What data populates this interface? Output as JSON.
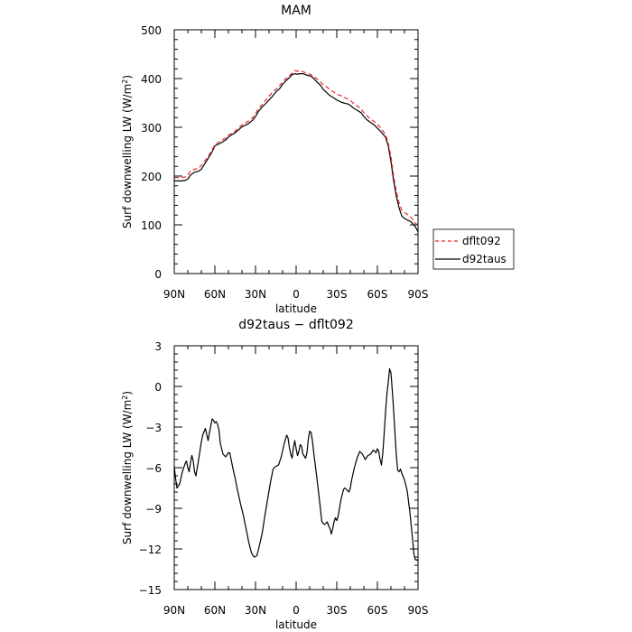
{
  "chart_data": [
    {
      "type": "line",
      "title": "MAM",
      "xlabel": "latitude",
      "ylabel": "Surf downwelling LW (W/m²)",
      "xlim": [
        90,
        -90
      ],
      "ylim": [
        0,
        500
      ],
      "x_ticks": [
        90,
        60,
        30,
        0,
        -30,
        -60,
        -90
      ],
      "x_tick_labels": [
        "90N",
        "60N",
        "30N",
        "0",
        "30S",
        "60S",
        "90S"
      ],
      "y_ticks": [
        0,
        100,
        200,
        300,
        400,
        500
      ],
      "y_tick_labels": [
        "0",
        "100",
        "200",
        "300",
        "400",
        "500"
      ],
      "legend": {
        "placement": "right",
        "entries": [
          {
            "label": "dflt092",
            "color": "#e8262b",
            "dash": "dashed"
          },
          {
            "label": "d92taus",
            "color": "#000000",
            "dash": "solid"
          }
        ]
      },
      "series": [
        {
          "name": "dflt092",
          "color": "#e8262b",
          "x": [
            90,
            85,
            82,
            80,
            78,
            75,
            72,
            70,
            65,
            62,
            60,
            57,
            55,
            52,
            50,
            48,
            45,
            42,
            40,
            37,
            35,
            32,
            30,
            28,
            25,
            22,
            20,
            18,
            15,
            12,
            10,
            8,
            5,
            3,
            1,
            -1,
            -3,
            -5,
            -7,
            -9,
            -11,
            -13,
            -15,
            -18,
            -20,
            -23,
            -25,
            -28,
            -30,
            -33,
            -35,
            -38,
            -40,
            -42,
            -45,
            -48,
            -50,
            -52,
            -55,
            -58,
            -60,
            -62,
            -64,
            -66,
            -68,
            -70,
            -72,
            -74,
            -76,
            -78,
            -80,
            -82,
            -85,
            -88,
            -90
          ],
          "values": [
            197,
            197,
            198,
            202,
            210,
            214,
            216,
            222,
            240,
            254,
            264,
            270,
            273,
            278,
            284,
            287,
            292,
            300,
            305,
            310,
            313,
            320,
            328,
            338,
            347,
            357,
            364,
            370,
            378,
            386,
            393,
            399,
            406,
            411,
            416,
            415,
            416,
            414,
            412,
            410,
            408,
            404,
            400,
            393,
            387,
            382,
            377,
            372,
            368,
            365,
            362,
            358,
            355,
            350,
            344,
            337,
            330,
            324,
            317,
            311,
            306,
            300,
            293,
            285,
            268,
            240,
            200,
            168,
            145,
            130,
            125,
            122,
            115,
            103,
            100
          ]
        },
        {
          "name": "d92taus",
          "color": "#000000",
          "x": [
            90,
            85,
            82,
            80,
            78,
            75,
            72,
            70,
            65,
            62,
            60,
            57,
            55,
            52,
            50,
            48,
            45,
            42,
            40,
            37,
            35,
            32,
            30,
            28,
            25,
            22,
            20,
            18,
            15,
            12,
            10,
            8,
            5,
            3,
            1,
            -1,
            -3,
            -5,
            -7,
            -9,
            -11,
            -13,
            -15,
            -18,
            -20,
            -23,
            -25,
            -28,
            -30,
            -33,
            -35,
            -38,
            -40,
            -42,
            -45,
            -48,
            -50,
            -52,
            -55,
            -58,
            -60,
            -62,
            -64,
            -66,
            -68,
            -70,
            -72,
            -74,
            -76,
            -78,
            -80,
            -82,
            -85,
            -88,
            -90
          ],
          "values": [
            190,
            190,
            191,
            194,
            202,
            208,
            210,
            214,
            236,
            250,
            262,
            266,
            269,
            274,
            280,
            284,
            289,
            296,
            301,
            305,
            308,
            315,
            322,
            332,
            342,
            350,
            356,
            362,
            372,
            380,
            388,
            394,
            402,
            408,
            410,
            409,
            410,
            410,
            408,
            406,
            405,
            400,
            394,
            386,
            378,
            370,
            365,
            360,
            356,
            352,
            350,
            348,
            345,
            340,
            335,
            330,
            322,
            316,
            310,
            304,
            298,
            293,
            286,
            280,
            262,
            230,
            190,
            158,
            135,
            118,
            113,
            110,
            106,
            96,
            86
          ]
        }
      ]
    },
    {
      "type": "line",
      "title": "d92taus − dflt092",
      "xlabel": "latitude",
      "ylabel": "Surf downwelling LW (W/m²)",
      "xlim": [
        90,
        -90
      ],
      "ylim": [
        -15,
        3
      ],
      "x_ticks": [
        90,
        60,
        30,
        0,
        -30,
        -60,
        -90
      ],
      "x_tick_labels": [
        "90N",
        "60N",
        "30N",
        "0",
        "30S",
        "60S",
        "90S"
      ],
      "y_ticks": [
        3,
        0,
        -3,
        -6,
        -9,
        -12,
        -15
      ],
      "y_tick_labels": [
        "3",
        "0",
        "−3",
        "−6",
        "−9",
        "−12",
        "−15"
      ],
      "series": [
        {
          "color": "#000000",
          "x": [
            90,
            89,
            88,
            86,
            84,
            82,
            81,
            80,
            79,
            78,
            77,
            76,
            75,
            74,
            72,
            70,
            69,
            67,
            65,
            64,
            63,
            62,
            61,
            60,
            59,
            58,
            57,
            56,
            54,
            52,
            50,
            49,
            47,
            45,
            43,
            41,
            39,
            37,
            35,
            33,
            31,
            29,
            27,
            25,
            23,
            21,
            19,
            17,
            15,
            13,
            11,
            9,
            7,
            6,
            5,
            4,
            3,
            2,
            1,
            0,
            -1,
            -2,
            -3,
            -4,
            -5,
            -7,
            -8,
            -9,
            -10,
            -11,
            -12,
            -13,
            -15,
            -17,
            -19,
            -21,
            -23,
            -24,
            -25,
            -26,
            -27,
            -28,
            -29,
            -30,
            -31,
            -32,
            -33,
            -35,
            -36,
            -37,
            -38,
            -39,
            -40,
            -41,
            -43,
            -45,
            -47,
            -49,
            -51,
            -53,
            -55,
            -57,
            -59,
            -60,
            -61,
            -62,
            -63,
            -64,
            -65,
            -66,
            -67,
            -68,
            -69,
            -70,
            -71,
            -72,
            -73,
            -74,
            -75,
            -76,
            -77,
            -78,
            -80,
            -82,
            -84,
            -86,
            -87,
            -88,
            -89,
            -90
          ],
          "values": [
            -5.9,
            -6.8,
            -7.5,
            -7.2,
            -6.3,
            -5.7,
            -5.5,
            -6.0,
            -6.3,
            -5.6,
            -5.1,
            -5.5,
            -6.3,
            -6.6,
            -5.4,
            -4.1,
            -3.6,
            -3.1,
            -4.0,
            -3.4,
            -2.9,
            -2.4,
            -2.5,
            -2.7,
            -2.6,
            -2.8,
            -3.2,
            -4.2,
            -5.0,
            -5.2,
            -4.9,
            -4.9,
            -5.9,
            -6.8,
            -7.8,
            -8.7,
            -9.5,
            -10.5,
            -11.5,
            -12.3,
            -12.6,
            -12.5,
            -11.7,
            -10.8,
            -9.5,
            -8.3,
            -7.1,
            -6.1,
            -5.9,
            -5.8,
            -5.2,
            -4.3,
            -3.6,
            -3.8,
            -4.5,
            -5.0,
            -5.3,
            -4.5,
            -4.0,
            -4.6,
            -5.1,
            -4.8,
            -4.3,
            -4.4,
            -5.0,
            -5.3,
            -4.9,
            -3.9,
            -3.3,
            -3.4,
            -4.0,
            -4.9,
            -6.5,
            -8.2,
            -10.0,
            -10.2,
            -10.0,
            -10.3,
            -10.5,
            -10.9,
            -10.5,
            -10.0,
            -9.7,
            -9.9,
            -9.6,
            -9.0,
            -8.4,
            -7.6,
            -7.5,
            -7.6,
            -7.7,
            -7.8,
            -7.5,
            -6.9,
            -6.0,
            -5.3,
            -4.8,
            -5.0,
            -5.4,
            -5.1,
            -5.0,
            -4.7,
            -4.9,
            -4.6,
            -4.8,
            -5.4,
            -5.8,
            -4.9,
            -3.5,
            -1.9,
            -0.6,
            0.3,
            1.3,
            1.0,
            -0.3,
            -1.8,
            -3.5,
            -5.1,
            -6.2,
            -6.3,
            -6.1,
            -6.4,
            -6.9,
            -7.7,
            -9.3,
            -11.3,
            -12.4,
            -12.8,
            -12.8,
            -12.9
          ]
        }
      ]
    }
  ]
}
